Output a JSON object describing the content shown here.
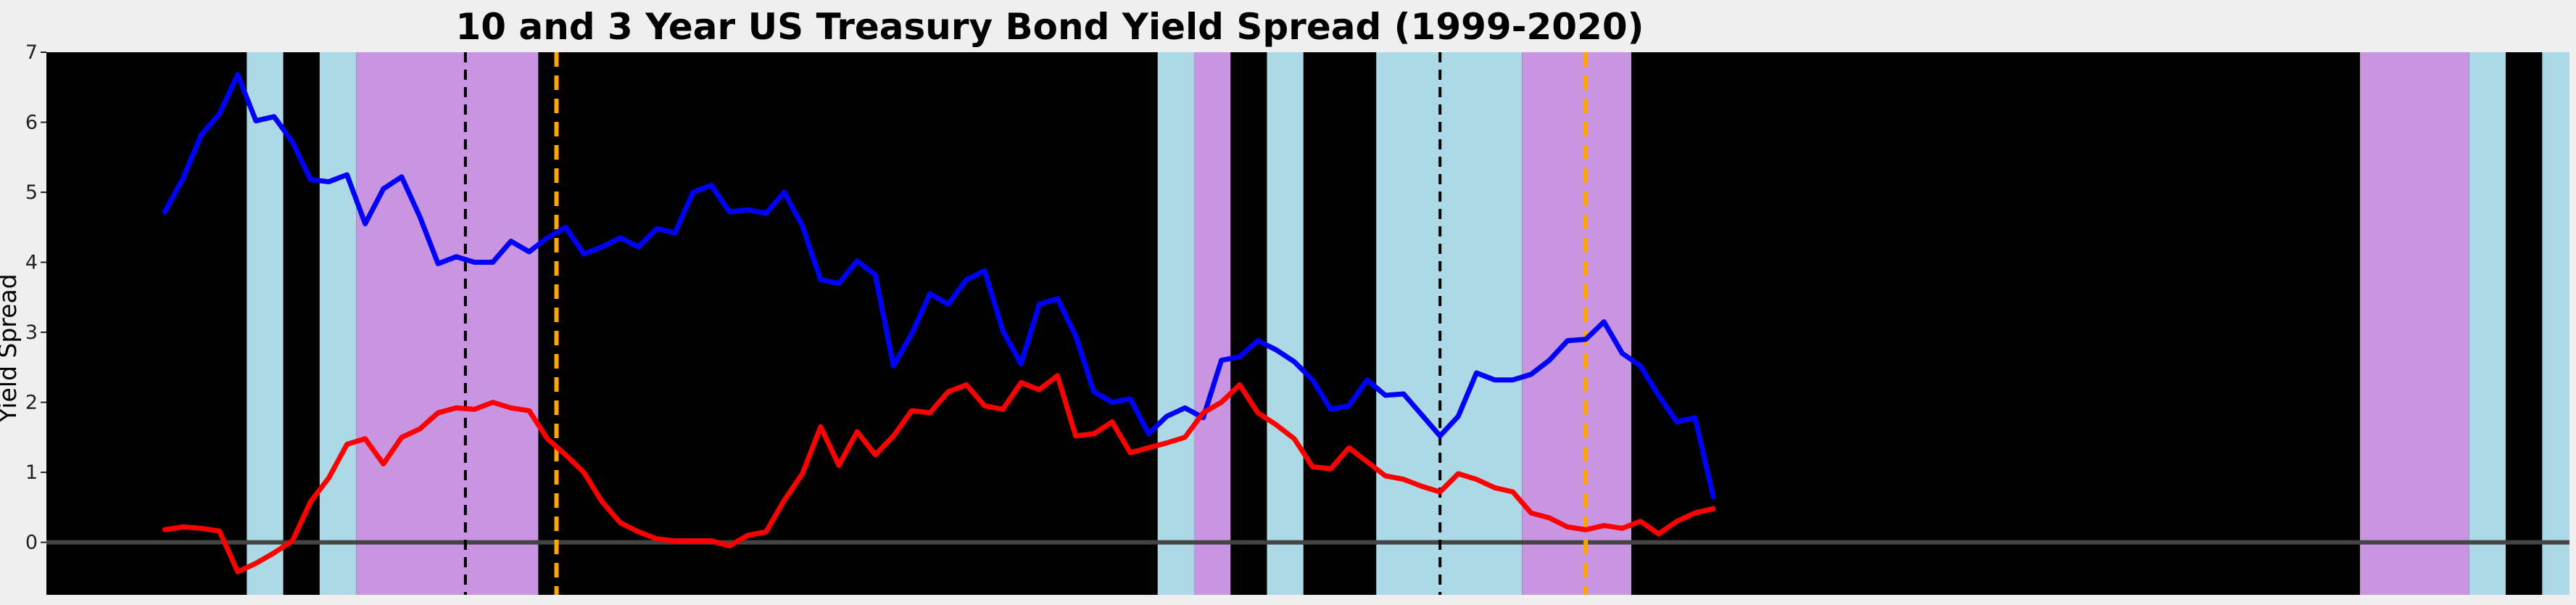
{
  "chart_data": {
    "type": "line",
    "title": "10 and 3 Year US Treasury Bond Yield Spread (1999-2020)",
    "xlabel": "",
    "ylabel": "Yield Spread",
    "ylim": [
      -0.75,
      7
    ],
    "yticks": [
      "0",
      "1",
      "2",
      "3",
      "4",
      "5",
      "6",
      "7"
    ],
    "xlim": [
      -6.5,
      132
    ],
    "grid": false,
    "legend": "none",
    "plot_background": "#000000",
    "zero_line_color": "#444444",
    "series": [
      {
        "color": "#0000ff",
        "values": [
          4.72,
          5.2,
          5.82,
          6.12,
          6.68,
          6.02,
          6.08,
          5.72,
          5.18,
          5.15,
          5.25,
          4.55,
          5.05,
          5.22,
          4.65,
          3.98,
          4.08,
          4.0,
          4.0,
          4.3,
          4.15,
          4.35,
          4.5,
          4.12,
          4.22,
          4.35,
          4.22,
          4.48,
          4.42,
          5.0,
          5.1,
          4.72,
          4.75,
          4.7,
          5.0,
          4.52,
          3.75,
          3.7,
          4.02,
          3.82,
          2.52,
          2.98,
          3.55,
          3.4,
          3.75,
          3.88,
          3.02,
          2.55,
          3.4,
          3.48,
          2.95,
          2.15,
          2.0,
          2.05,
          1.55,
          1.8,
          1.92,
          1.78,
          2.6,
          2.65,
          2.88,
          2.75,
          2.58,
          2.32,
          1.9,
          1.95,
          2.32,
          2.1,
          2.12,
          1.82,
          1.52,
          1.8,
          2.42,
          2.32,
          2.32,
          2.4,
          2.6,
          2.88,
          2.9,
          3.15,
          2.7,
          2.52,
          2.1,
          1.72,
          1.78,
          0.65
        ]
      },
      {
        "color": "#ff0000",
        "values": [
          0.18,
          0.22,
          0.2,
          0.16,
          -0.42,
          -0.3,
          -0.15,
          0.02,
          0.58,
          0.92,
          1.4,
          1.48,
          1.12,
          1.5,
          1.62,
          1.85,
          1.92,
          1.9,
          2.0,
          1.92,
          1.88,
          1.48,
          1.25,
          1.0,
          0.58,
          0.28,
          0.15,
          0.05,
          0.02,
          0.02,
          0.02,
          -0.05,
          0.1,
          0.15,
          0.6,
          0.98,
          1.65,
          1.1,
          1.58,
          1.25,
          1.52,
          1.88,
          1.85,
          2.15,
          2.25,
          1.95,
          1.9,
          2.28,
          2.18,
          2.38,
          1.52,
          1.55,
          1.72,
          1.28,
          1.35,
          1.42,
          1.5,
          1.85,
          2.0,
          2.25,
          1.85,
          1.68,
          1.48,
          1.08,
          1.05,
          1.35,
          1.15,
          0.95,
          0.9,
          0.8,
          0.72,
          0.98,
          0.9,
          0.78,
          0.72,
          0.42,
          0.35,
          0.22,
          0.18,
          0.24,
          0.2,
          0.3,
          0.12,
          0.3,
          0.42,
          0.48
        ]
      }
    ],
    "bands": [
      {
        "x0": 4.5,
        "x1": 6.5,
        "color": "#add8e6"
      },
      {
        "x0": 8.5,
        "x1": 10.5,
        "color": "#add8e6"
      },
      {
        "x0": 10.5,
        "x1": 20.5,
        "color": "#c994e0"
      },
      {
        "x0": 54.5,
        "x1": 56.5,
        "color": "#add8e6"
      },
      {
        "x0": 56.5,
        "x1": 58.5,
        "color": "#c994e0"
      },
      {
        "x0": 60.5,
        "x1": 62.5,
        "color": "#add8e6"
      },
      {
        "x0": 66.5,
        "x1": 74.5,
        "color": "#add8e6"
      },
      {
        "x0": 74.5,
        "x1": 80.5,
        "color": "#c994e0"
      },
      {
        "x0": 120.5,
        "x1": 126.5,
        "color": "#c994e0"
      },
      {
        "x0": 126.5,
        "x1": 128.5,
        "color": "#add8e6"
      },
      {
        "x0": 130.5,
        "x1": 132.0,
        "color": "#add8e6"
      }
    ],
    "vlines": [
      {
        "x": 16.5,
        "color": "#000000",
        "style": "dashed"
      },
      {
        "x": 21.5,
        "color": "#ffa500",
        "style": "dashed"
      },
      {
        "x": 70.0,
        "color": "#000000",
        "style": "dashed"
      },
      {
        "x": 78.0,
        "color": "#ffa500",
        "style": "dashed"
      }
    ]
  }
}
